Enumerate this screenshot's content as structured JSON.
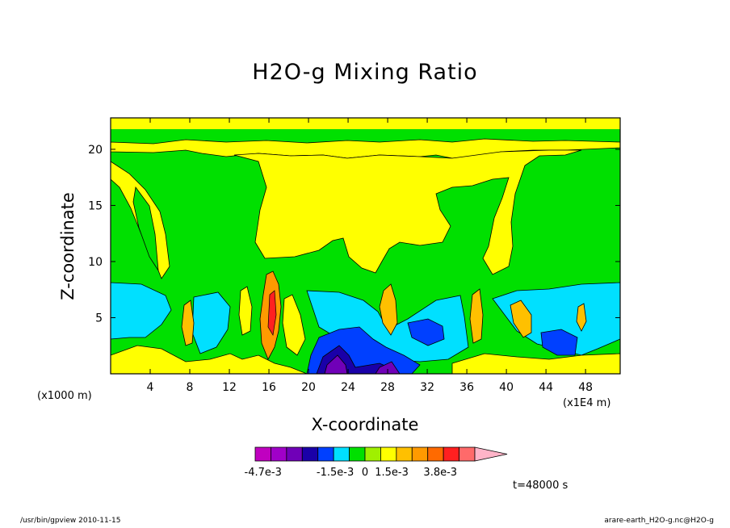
{
  "chart_data": {
    "type": "heatmap",
    "title": "H2O-g Mixing Ratio",
    "xlabel": "X-coordinate",
    "ylabel": "Z-coordinate",
    "x_unit_note": "(x1000 m)",
    "x_scale_note": "(x1E4 m)",
    "xlim": [
      0,
      51.5
    ],
    "ylim": [
      0,
      22.8
    ],
    "xticks": [
      4,
      8,
      12,
      16,
      20,
      24,
      28,
      32,
      36,
      40,
      44,
      48
    ],
    "yticks": [
      5,
      10,
      15,
      20
    ],
    "time_label": "t=48000 s",
    "colorbar": {
      "colors": [
        "#c000c0",
        "#a000c8",
        "#7000b8",
        "#1a00a8",
        "#0040ff",
        "#00e0ff",
        "#00e000",
        "#a0f000",
        "#ffff00",
        "#ffc000",
        "#ff9a00",
        "#ff6a00",
        "#ff2020",
        "#ff6a6a",
        "#ffb4c8"
      ],
      "labels": [
        "-4.7e-3",
        "-1.5e-3",
        "0",
        "1.5e-3",
        "3.8e-3"
      ],
      "extend": "max"
    },
    "regions": {
      "upper_band": {
        "z": [
          19.5,
          22.8
        ],
        "level": "yellow"
      },
      "upper_middle": {
        "z": [
          9,
          19.5
        ],
        "level": "green with yellow plumes"
      },
      "lower_layer": {
        "z": [
          0,
          8
        ],
        "level": "cyan / blue / green mixed"
      },
      "anomaly_min_x": [
        22,
        30
      ],
      "anomaly_max_x": [
        16,
        17
      ]
    }
  },
  "footer": {
    "left": "/usr/bin/gpview   2010-11-15",
    "right": "arare-earth_H2O-g.nc@H2O-g"
  }
}
